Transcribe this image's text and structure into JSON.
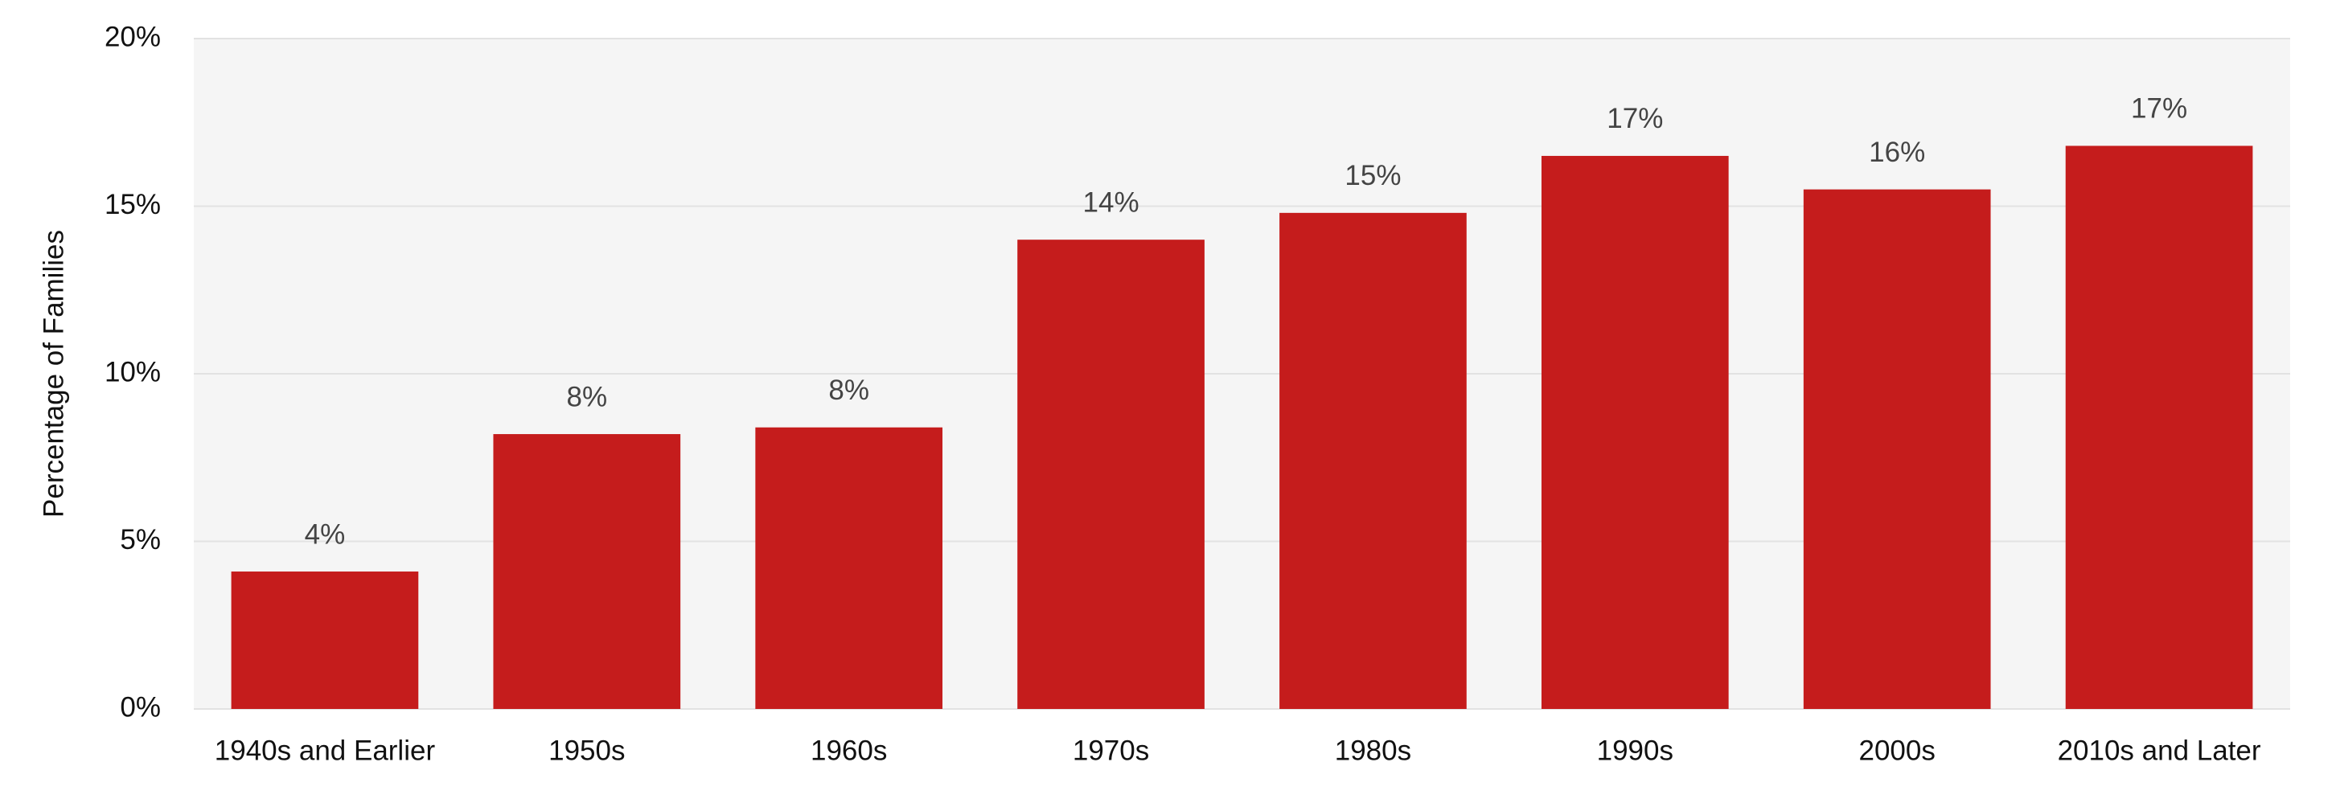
{
  "chart_data": {
    "type": "bar",
    "y_label": "Percentage of Families",
    "categories": [
      "1940s and Earlier",
      "1950s",
      "1960s",
      "1970s",
      "1980s",
      "1990s",
      "2000s",
      "2010s and Later"
    ],
    "values": [
      4.1,
      8.2,
      8.4,
      14.0,
      14.8,
      16.5,
      15.5,
      16.8
    ],
    "value_labels": [
      "4%",
      "8%",
      "8%",
      "14%",
      "15%",
      "17%",
      "16%",
      "17%"
    ],
    "color": "#c51c1c",
    "ylim": [
      0,
      20
    ],
    "yticks": [
      {
        "value": 0,
        "label": "0%"
      },
      {
        "value": 5,
        "label": "5%"
      },
      {
        "value": 10,
        "label": "10%"
      },
      {
        "value": 15,
        "label": "15%"
      },
      {
        "value": 20,
        "label": "20%"
      }
    ],
    "grid": true
  }
}
